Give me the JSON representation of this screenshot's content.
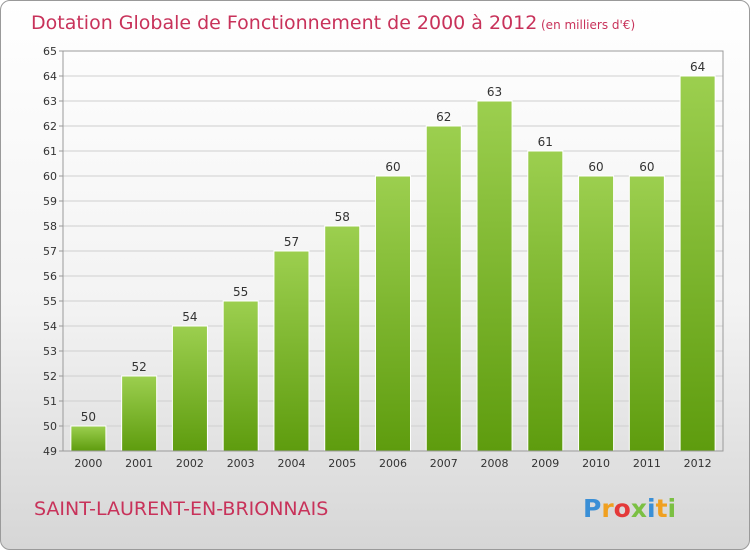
{
  "chart_data": {
    "type": "bar",
    "title": "Dotation Globale de Fonctionnement de 2000 à 2012",
    "subtitle": "(en milliers d'€)",
    "categories": [
      "2000",
      "2001",
      "2002",
      "2003",
      "2004",
      "2005",
      "2006",
      "2007",
      "2008",
      "2009",
      "2010",
      "2011",
      "2012"
    ],
    "values": [
      50,
      52,
      54,
      55,
      57,
      58,
      60,
      62,
      63,
      61,
      60,
      60,
      64
    ],
    "ylim": [
      49,
      65
    ],
    "yticks": [
      49,
      50,
      51,
      52,
      53,
      54,
      55,
      56,
      57,
      58,
      59,
      60,
      61,
      62,
      63,
      64,
      65
    ],
    "grid": true,
    "colors": {
      "bar_top": "#9ccf4f",
      "bar_bottom": "#5e9c0e",
      "grid": "#cfcfcf",
      "title": "#c8325a"
    }
  },
  "footer": {
    "place": "SAINT-LAURENT-EN-BRIONNAIS",
    "brand": "Proxiti",
    "brand_colors": [
      "#3a8fd6",
      "#f0a020",
      "#e43a3a",
      "#7bc043",
      "#3a8fd6",
      "#f0a020",
      "#7bc043"
    ]
  }
}
